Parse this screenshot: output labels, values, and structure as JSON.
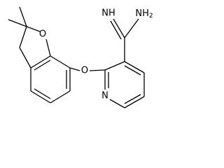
{
  "atoms": {
    "furan_oxygen": "O",
    "ether_oxygen": "O",
    "pyridine_nitrogen": "N",
    "imine": "NH",
    "amine": {
      "text": "NH",
      "subscript": "2"
    }
  }
}
